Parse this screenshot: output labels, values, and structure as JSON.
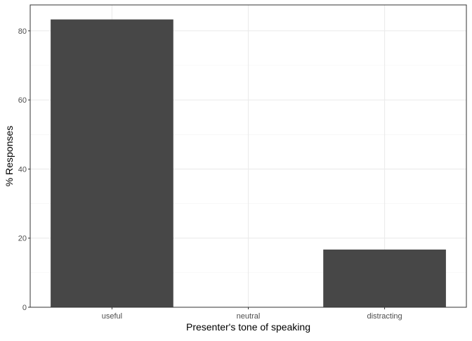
{
  "chart_data": {
    "type": "bar",
    "title": "",
    "xlabel": "Presenter's tone of speaking",
    "ylabel": "% Responses",
    "categories": [
      "useful",
      "neutral",
      "distracting"
    ],
    "values": [
      83.3,
      0,
      16.7
    ],
    "ylim": [
      0,
      87.5
    ],
    "yticks": [
      0,
      20,
      40,
      60,
      80
    ],
    "y_tick_labels": [
      "0",
      "20",
      "40",
      "60",
      "80"
    ],
    "grid": true,
    "legend": "none",
    "colors": {
      "bar": "#474747",
      "grid_major": "#ebebeb",
      "grid_minor": "#f3f3f3",
      "panel_border": "#333333",
      "tick_text": "#4d4d4d",
      "axis_title": "#000000"
    }
  }
}
